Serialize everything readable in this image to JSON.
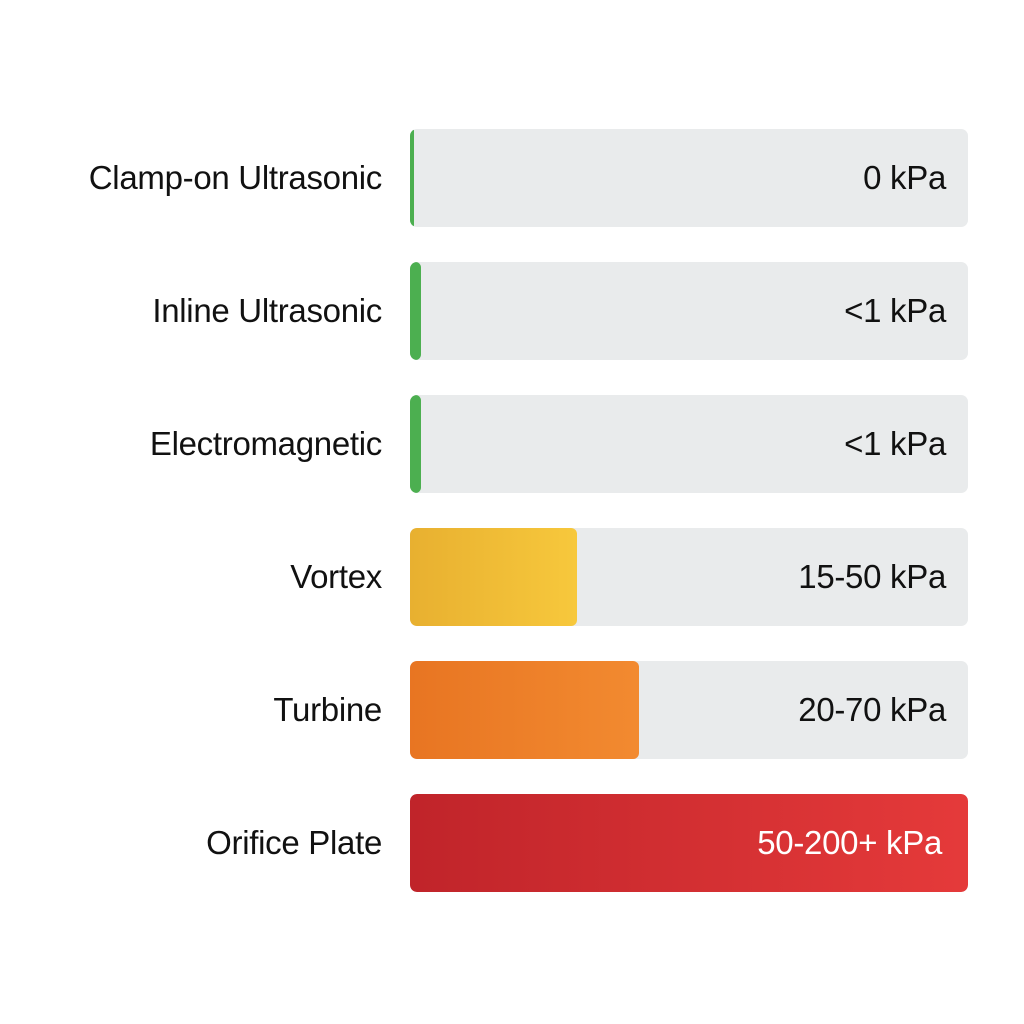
{
  "chart_data": {
    "type": "bar",
    "orientation": "horizontal",
    "categories": [
      "Clamp-on Ultrasonic",
      "Inline Ultrasonic",
      "Electromagnetic",
      "Vortex",
      "Turbine",
      "Orifice Plate"
    ],
    "value_labels": [
      "0 kPa",
      "<1 kPa",
      "<1 kPa",
      "15-50 kPa",
      "20-70 kPa",
      "50-200+ kPa"
    ],
    "fill_fractions": [
      0.008,
      0.02,
      0.02,
      0.3,
      0.41,
      1.0
    ],
    "colors": [
      [
        "#4caf50",
        "#4caf50"
      ],
      [
        "#4caf50",
        "#4caf50"
      ],
      [
        "#4caf50",
        "#4caf50"
      ],
      [
        "#e8b030",
        "#f7c83c"
      ],
      [
        "#e87522",
        "#f28a30"
      ],
      [
        "#c0242a",
        "#e53a3a"
      ]
    ],
    "track_color": "#e9ebec",
    "grid": false,
    "legend": "none",
    "title": "",
    "xlabel": "",
    "ylabel": ""
  }
}
